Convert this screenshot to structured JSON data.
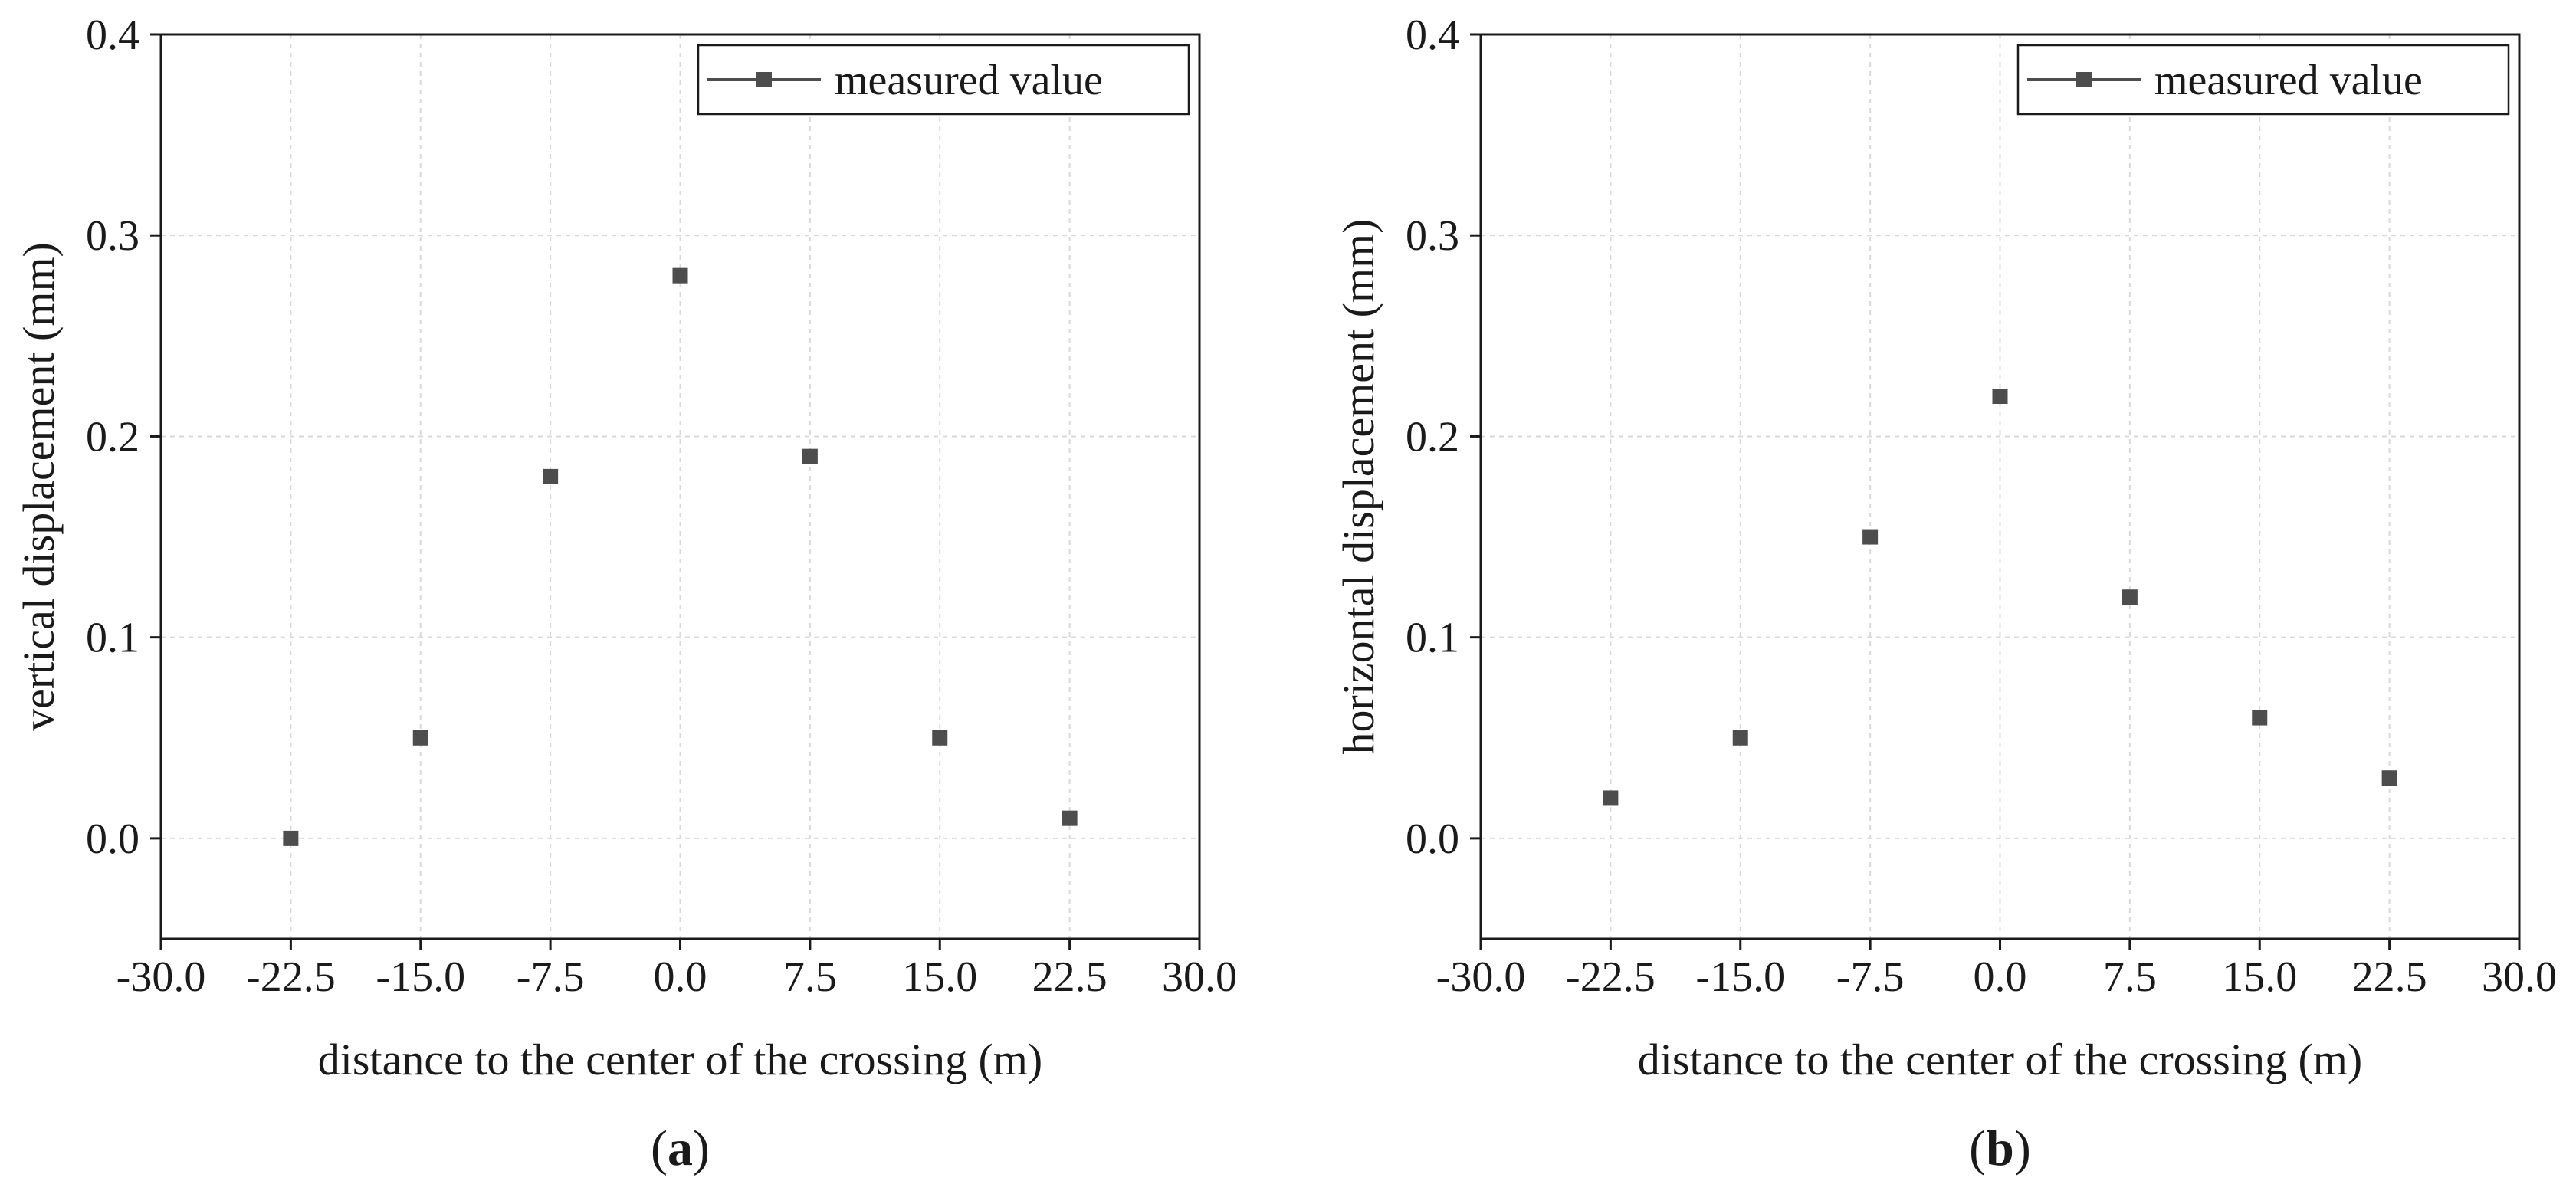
{
  "chart_data": [
    {
      "type": "scatter",
      "panel_label": "a",
      "title": "",
      "xlabel": "distance to the center of the crossing (m)",
      "ylabel": "vertical displacement (mm)",
      "xlim": [
        -30.0,
        30.0
      ],
      "ylim": [
        -0.05,
        0.4
      ],
      "xticks": [
        "-30.0",
        "-22.5",
        "-15.0",
        "-7.5",
        "0.0",
        "7.5",
        "15.0",
        "22.5",
        "30.0"
      ],
      "xtick_values": [
        -30.0,
        -22.5,
        -15.0,
        -7.5,
        0.0,
        7.5,
        15.0,
        22.5,
        30.0
      ],
      "yticks": [
        "0.0",
        "0.1",
        "0.2",
        "0.3",
        "0.4"
      ],
      "ytick_values": [
        0.0,
        0.1,
        0.2,
        0.3,
        0.4
      ],
      "grid": true,
      "legend_position": "top-right",
      "series": [
        {
          "name": "measured value",
          "color": "#4d4d4d",
          "x": [
            -22.5,
            -15.0,
            -7.5,
            0.0,
            7.5,
            15.0,
            22.5
          ],
          "y": [
            0.0,
            0.05,
            0.18,
            0.28,
            0.19,
            0.05,
            0.01
          ]
        }
      ]
    },
    {
      "type": "scatter",
      "panel_label": "b",
      "title": "",
      "xlabel": "distance to the center of the crossing (m)",
      "ylabel": "horizontal displacement (mm)",
      "xlim": [
        -30.0,
        30.0
      ],
      "ylim": [
        -0.05,
        0.4
      ],
      "xticks": [
        "-30.0",
        "-22.5",
        "-15.0",
        "-7.5",
        "0.0",
        "7.5",
        "15.0",
        "22.5",
        "30.0"
      ],
      "xtick_values": [
        -30.0,
        -22.5,
        -15.0,
        -7.5,
        0.0,
        7.5,
        15.0,
        22.5,
        30.0
      ],
      "yticks": [
        "0.0",
        "0.1",
        "0.2",
        "0.3",
        "0.4"
      ],
      "ytick_values": [
        0.0,
        0.1,
        0.2,
        0.3,
        0.4
      ],
      "grid": true,
      "legend_position": "top-right",
      "series": [
        {
          "name": "measured value",
          "color": "#4d4d4d",
          "x": [
            -22.5,
            -15.0,
            -7.5,
            0.0,
            7.5,
            15.0,
            22.5
          ],
          "y": [
            0.02,
            0.05,
            0.15,
            0.22,
            0.12,
            0.06,
            0.03
          ]
        }
      ]
    }
  ]
}
